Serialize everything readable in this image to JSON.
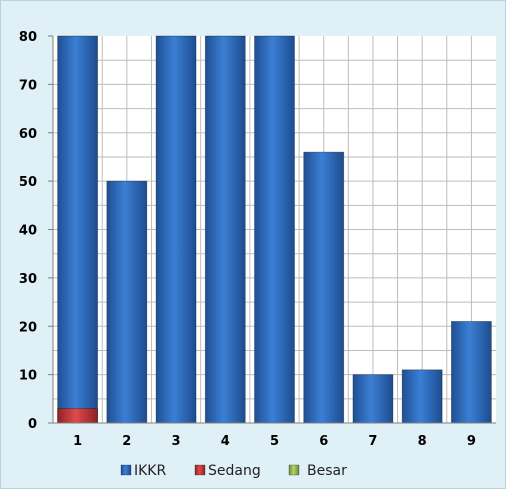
{
  "chart_data": {
    "type": "bar",
    "stacked": false,
    "categories": [
      "1",
      "2",
      "3",
      "4",
      "5",
      "6",
      "7",
      "8",
      "9"
    ],
    "series": [
      {
        "name": "IKKR",
        "color": "#2e6fc0",
        "values": [
          80,
          50,
          80,
          80,
          80,
          56,
          10,
          11,
          21
        ]
      },
      {
        "name": "Sedang",
        "color": "#c0393b",
        "values": [
          3,
          null,
          null,
          null,
          null,
          null,
          null,
          null,
          null
        ]
      },
      {
        "name": "Besar",
        "color": "#9bbb59",
        "values": [
          null,
          null,
          null,
          null,
          null,
          null,
          null,
          null,
          null
        ]
      }
    ],
    "ylim": [
      0,
      80
    ],
    "yticks": [
      0,
      10,
      20,
      30,
      40,
      50,
      60,
      70,
      80
    ],
    "grid": true,
    "legend": "bottom",
    "title": "",
    "xlabel": "",
    "ylabel": ""
  }
}
